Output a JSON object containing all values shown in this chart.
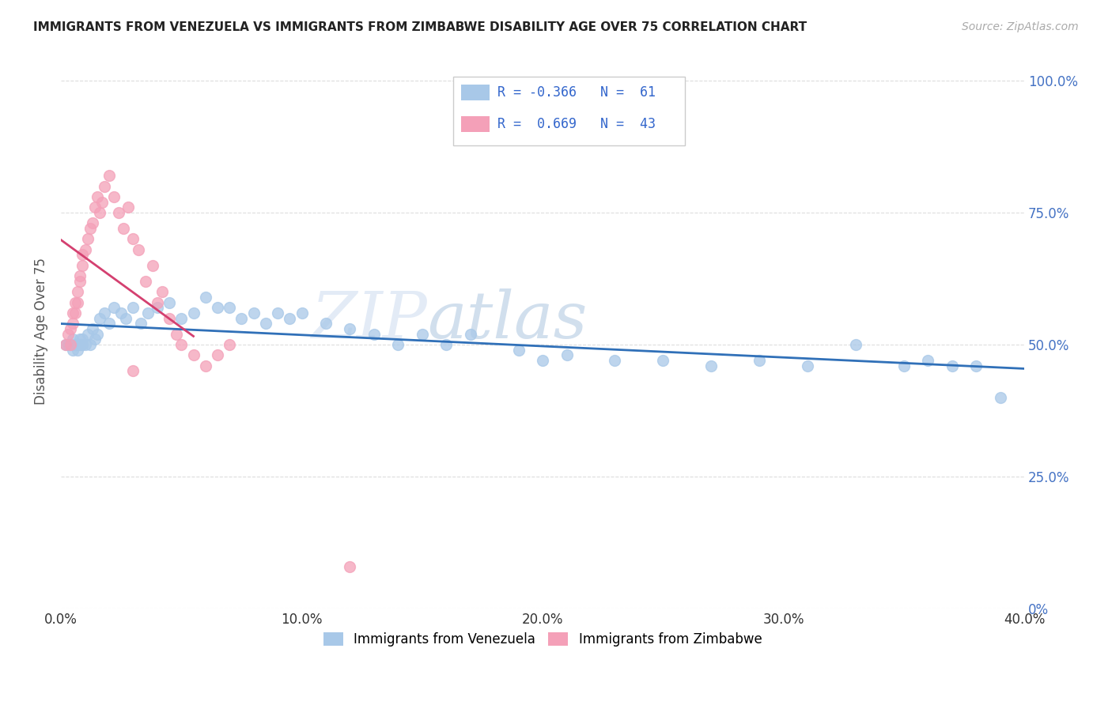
{
  "title": "IMMIGRANTS FROM VENEZUELA VS IMMIGRANTS FROM ZIMBABWE DISABILITY AGE OVER 75 CORRELATION CHART",
  "source": "Source: ZipAtlas.com",
  "ylabel": "Disability Age Over 75",
  "legend_label_1": "Immigrants from Venezuela",
  "legend_label_2": "Immigrants from Zimbabwe",
  "R1": -0.366,
  "N1": 61,
  "R2": 0.669,
  "N2": 43,
  "color_venezuela": "#a8c8e8",
  "color_zimbabwe": "#f4a0b8",
  "color_trendline_venezuela": "#3070b8",
  "color_trendline_zimbabwe": "#d44070",
  "xlim": [
    0.0,
    0.4
  ],
  "ylim": [
    0.0,
    1.05
  ],
  "xtick_labels": [
    "0.0%",
    "",
    "",
    "",
    "",
    "",
    "",
    "",
    "",
    "",
    "10.0%",
    "",
    "",
    "",
    "",
    "",
    "",
    "",
    "",
    "",
    "20.0%",
    "",
    "",
    "",
    "",
    "",
    "",
    "",
    "",
    "",
    "30.0%",
    "",
    "",
    "",
    "",
    "",
    "",
    "",
    "",
    "",
    "40.0%"
  ],
  "xtick_vals": [
    0.0,
    0.01,
    0.02,
    0.03,
    0.04,
    0.05,
    0.06,
    0.07,
    0.08,
    0.09,
    0.1,
    0.11,
    0.12,
    0.13,
    0.14,
    0.15,
    0.16,
    0.17,
    0.18,
    0.19,
    0.2,
    0.21,
    0.22,
    0.23,
    0.24,
    0.25,
    0.26,
    0.27,
    0.28,
    0.29,
    0.3,
    0.31,
    0.32,
    0.33,
    0.34,
    0.35,
    0.36,
    0.37,
    0.38,
    0.39,
    0.4
  ],
  "ytick_vals": [
    0.0,
    0.25,
    0.5,
    0.75,
    1.0
  ],
  "ytick_labels_right": [
    "0%",
    "25.0%",
    "50.0%",
    "75.0%",
    "100.0%"
  ],
  "watermark_zip": "ZIP",
  "watermark_atlas": "atlas",
  "background_color": "#ffffff",
  "grid_color": "#dddddd",
  "venezuela_x": [
    0.002,
    0.003,
    0.004,
    0.005,
    0.005,
    0.006,
    0.007,
    0.007,
    0.008,
    0.008,
    0.009,
    0.009,
    0.01,
    0.011,
    0.012,
    0.013,
    0.014,
    0.015,
    0.016,
    0.018,
    0.02,
    0.022,
    0.025,
    0.027,
    0.03,
    0.033,
    0.036,
    0.04,
    0.045,
    0.05,
    0.055,
    0.06,
    0.065,
    0.07,
    0.075,
    0.08,
    0.085,
    0.09,
    0.095,
    0.1,
    0.11,
    0.12,
    0.13,
    0.14,
    0.15,
    0.16,
    0.17,
    0.19,
    0.2,
    0.21,
    0.23,
    0.25,
    0.27,
    0.29,
    0.31,
    0.33,
    0.35,
    0.36,
    0.37,
    0.38,
    0.39
  ],
  "venezuela_y": [
    0.5,
    0.5,
    0.5,
    0.49,
    0.51,
    0.5,
    0.5,
    0.49,
    0.51,
    0.5,
    0.51,
    0.5,
    0.5,
    0.52,
    0.5,
    0.53,
    0.51,
    0.52,
    0.55,
    0.56,
    0.54,
    0.57,
    0.56,
    0.55,
    0.57,
    0.54,
    0.56,
    0.57,
    0.58,
    0.55,
    0.56,
    0.59,
    0.57,
    0.57,
    0.55,
    0.56,
    0.54,
    0.56,
    0.55,
    0.56,
    0.54,
    0.53,
    0.52,
    0.5,
    0.52,
    0.5,
    0.52,
    0.49,
    0.47,
    0.48,
    0.47,
    0.47,
    0.46,
    0.47,
    0.46,
    0.5,
    0.46,
    0.47,
    0.46,
    0.46,
    0.4
  ],
  "zimbabwe_x": [
    0.002,
    0.003,
    0.004,
    0.004,
    0.005,
    0.005,
    0.006,
    0.006,
    0.007,
    0.007,
    0.008,
    0.008,
    0.009,
    0.009,
    0.01,
    0.011,
    0.012,
    0.013,
    0.014,
    0.015,
    0.016,
    0.017,
    0.018,
    0.02,
    0.022,
    0.024,
    0.026,
    0.028,
    0.03,
    0.032,
    0.035,
    0.038,
    0.04,
    0.042,
    0.045,
    0.048,
    0.05,
    0.055,
    0.06,
    0.065,
    0.07,
    0.12,
    0.03
  ],
  "zimbabwe_y": [
    0.5,
    0.52,
    0.53,
    0.5,
    0.56,
    0.54,
    0.58,
    0.56,
    0.6,
    0.58,
    0.62,
    0.63,
    0.65,
    0.67,
    0.68,
    0.7,
    0.72,
    0.73,
    0.76,
    0.78,
    0.75,
    0.77,
    0.8,
    0.82,
    0.78,
    0.75,
    0.72,
    0.76,
    0.7,
    0.68,
    0.62,
    0.65,
    0.58,
    0.6,
    0.55,
    0.52,
    0.5,
    0.48,
    0.46,
    0.48,
    0.5,
    0.08,
    0.45
  ]
}
